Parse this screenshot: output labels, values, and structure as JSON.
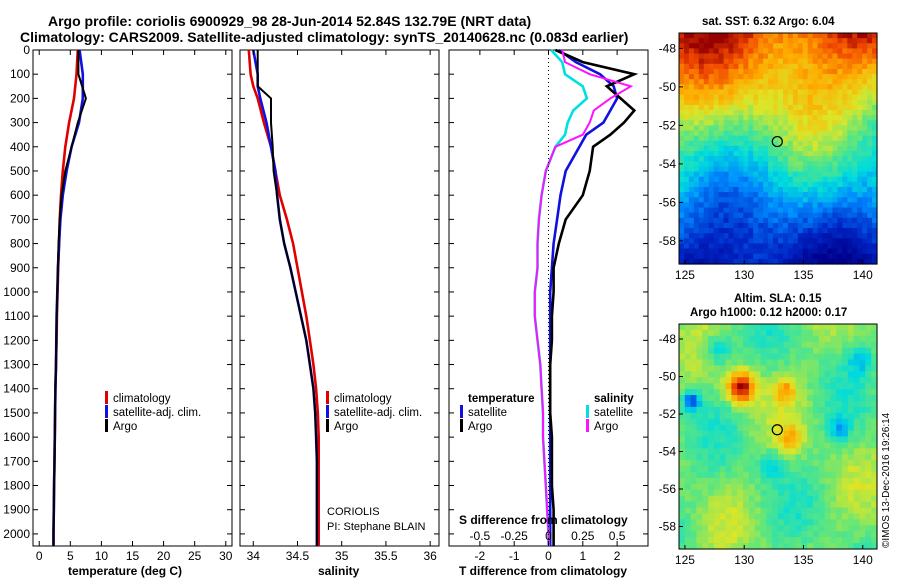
{
  "header": {
    "title_line1": "Argo profile: coriolis 6900929_98 28-Jun-2014 52.84S 132.79E (NRT data)",
    "title_line2": "Climatology: CARS2009. Satellite-adjusted climatology: synTS_20140628.nc (0.083d earlier)"
  },
  "colors": {
    "climatology": "#e00000",
    "satellite_adj": "#1010e0",
    "argo": "#000000",
    "satellite_T": "#1010e0",
    "satellite_S": "#00e0e0",
    "argo_S": "#ff10ff"
  },
  "chart_data": [
    {
      "id": "temperature",
      "type": "line",
      "xlabel": "temperature (deg C)",
      "ylabel": "",
      "xlim": [
        -1,
        31
      ],
      "ylim": [
        2050,
        0
      ],
      "xticks": [
        0,
        5,
        10,
        15,
        20,
        25,
        30
      ],
      "yticks": [
        0,
        100,
        200,
        300,
        400,
        500,
        600,
        700,
        800,
        900,
        1000,
        1100,
        1200,
        1300,
        1400,
        1500,
        1600,
        1700,
        1800,
        1900,
        2000
      ],
      "depth": [
        0,
        100,
        200,
        300,
        400,
        500,
        600,
        700,
        800,
        900,
        1000,
        1100,
        1200,
        1300,
        1400,
        1500,
        1600,
        1700,
        1800,
        1900,
        2000,
        2050
      ],
      "series": [
        {
          "name": "climatology",
          "values": [
            6.2,
            6.0,
            5.6,
            4.8,
            4.2,
            3.8,
            3.5,
            3.3,
            3.2,
            3.05,
            2.95,
            2.85,
            2.8,
            2.7,
            2.6,
            2.55,
            2.5,
            2.45,
            2.4,
            2.35,
            2.3,
            2.3
          ]
        },
        {
          "name": "satellite-adj. clim.",
          "values": [
            6.5,
            7.0,
            7.0,
            6.4,
            5.2,
            4.4,
            3.8,
            3.4,
            3.2,
            3.0,
            2.9,
            2.8,
            2.75,
            2.7,
            2.6,
            2.55,
            2.5,
            2.45,
            2.4,
            2.35,
            2.3,
            2.3
          ]
        },
        {
          "name": "Argo",
          "values": [
            6.3,
            6.3,
            7.5,
            6.2,
            5.2,
            4.2,
            3.6,
            3.3,
            3.1,
            3.0,
            2.9,
            2.8,
            2.75,
            2.7,
            2.6,
            2.55,
            2.5,
            2.45,
            2.4,
            2.35,
            2.3,
            2.3
          ]
        }
      ],
      "legend": [
        "climatology",
        "satellite-adj. clim.",
        "Argo"
      ]
    },
    {
      "id": "salinity",
      "type": "line",
      "xlabel": "salinity",
      "xlim": [
        33.85,
        36.1
      ],
      "ylim": [
        2050,
        0
      ],
      "xticks": [
        34,
        34.5,
        35,
        35.5,
        36
      ],
      "depth": [
        0,
        100,
        150,
        200,
        300,
        400,
        500,
        600,
        700,
        800,
        900,
        1000,
        1100,
        1200,
        1300,
        1400,
        1500,
        1600,
        1700,
        1800,
        1900,
        2000,
        2050
      ],
      "series": [
        {
          "name": "climatology",
          "values": [
            33.95,
            33.97,
            34.0,
            34.05,
            34.12,
            34.2,
            34.25,
            34.3,
            34.38,
            34.45,
            34.5,
            34.55,
            34.6,
            34.64,
            34.68,
            34.71,
            34.73,
            34.74,
            34.74,
            34.74,
            34.74,
            34.74,
            34.74
          ]
        },
        {
          "name": "satellite-adj. clim.",
          "values": [
            34.0,
            34.05,
            34.05,
            34.08,
            34.15,
            34.2,
            34.25,
            34.27,
            34.3,
            34.35,
            34.42,
            34.48,
            34.54,
            34.6,
            34.64,
            34.68,
            34.7,
            34.71,
            34.72,
            34.72,
            34.72,
            34.72,
            34.72
          ]
        },
        {
          "name": "Argo",
          "values": [
            34.05,
            34.05,
            34.05,
            34.2,
            34.2,
            34.22,
            34.23,
            34.27,
            34.3,
            34.35,
            34.42,
            34.48,
            34.54,
            34.6,
            34.64,
            34.68,
            34.7,
            34.71,
            34.72,
            34.72,
            34.72,
            34.72,
            34.72
          ]
        }
      ],
      "legend": [
        "climatology",
        "satellite-adj. clim.",
        "Argo"
      ],
      "annotation": [
        "CORIOLIS",
        "PI: Stephane BLAIN"
      ]
    },
    {
      "id": "differences",
      "type": "line",
      "xlabel": "T difference from climatology",
      "top_label": "S difference from climatology",
      "xlim": [
        -2.9,
        2.9
      ],
      "ylim": [
        2050,
        0
      ],
      "xticks": [
        -2,
        -1,
        0,
        1,
        2
      ],
      "xtick_labels": [
        "-2",
        "-1",
        "0",
        "1",
        "2"
      ],
      "s_tick_labels": [
        "-0.5",
        "-0.25",
        "0",
        "0.25",
        "0.5"
      ],
      "depth": [
        0,
        50,
        100,
        150,
        200,
        250,
        300,
        350,
        400,
        500,
        600,
        700,
        800,
        900,
        1000,
        1100,
        1200,
        1300,
        1400,
        1500,
        1600,
        1700,
        1800,
        1900,
        2000,
        2050
      ],
      "series": [
        {
          "name": "temperature satellite",
          "values": [
            0.3,
            0.8,
            1.5,
            1.9,
            2.0,
            1.8,
            1.6,
            1.1,
            0.9,
            0.5,
            0.35,
            0.25,
            0.15,
            0.1,
            0.05,
            0.05,
            0.05,
            0.05,
            0.05,
            0.05,
            0.05,
            0.05,
            0.05,
            0.05,
            0.05,
            0.05
          ]
        },
        {
          "name": "temperature Argo",
          "values": [
            0.2,
            1.0,
            2.5,
            1.7,
            2.1,
            2.5,
            2.2,
            1.8,
            1.3,
            1.2,
            1.0,
            0.5,
            0.3,
            0.15,
            0.15,
            0.1,
            0.1,
            0.05,
            0.05,
            0.05,
            0.1,
            0.1,
            0.1,
            0.15,
            0.15,
            0.15
          ]
        },
        {
          "name": "salinity satellite",
          "values": [
            0.02,
            0.1,
            0.12,
            0.25,
            0.28,
            0.18,
            0.14,
            0.12,
            0.05,
            -0.02,
            -0.05,
            -0.07,
            -0.08,
            -0.08,
            -0.1,
            -0.1,
            -0.08,
            -0.06,
            -0.05,
            -0.04,
            -0.04,
            -0.03,
            -0.02,
            -0.01,
            0.0,
            0.0
          ]
        },
        {
          "name": "salinity Argo",
          "values": [
            0.1,
            0.12,
            0.3,
            0.6,
            0.45,
            0.33,
            0.3,
            0.25,
            0.05,
            -0.02,
            -0.05,
            -0.07,
            -0.08,
            -0.08,
            -0.1,
            -0.1,
            -0.08,
            -0.06,
            -0.05,
            -0.04,
            -0.04,
            -0.03,
            -0.02,
            -0.01,
            0.0,
            0.0
          ]
        }
      ],
      "legend": {
        "temperature_heading": "temperature",
        "salinity_heading": "salinity",
        "temperature": [
          "satellite",
          "Argo"
        ],
        "salinity": [
          "satellite",
          "Argo"
        ]
      }
    },
    {
      "id": "sst_map",
      "type": "heatmap",
      "title": "sat. SST: 6.32 Argo: 6.04",
      "xticks": [
        125,
        130,
        135,
        140
      ],
      "yticks": [
        -48,
        -50,
        -52,
        -54,
        -56,
        -58
      ],
      "xlim": [
        124.5,
        141.2
      ],
      "ylim": [
        -59.2,
        -47.2
      ],
      "marker": {
        "lon": 132.79,
        "lat": -52.84
      }
    },
    {
      "id": "sla_map",
      "type": "heatmap",
      "title_line1": "Altim. SLA: 0.15",
      "title_line2": "Argo h1000: 0.12 h2000: 0.17",
      "xticks": [
        125,
        130,
        135,
        140
      ],
      "yticks": [
        -48,
        -50,
        -52,
        -54,
        -56,
        -58
      ],
      "xlim": [
        124.5,
        141.2
      ],
      "ylim": [
        -59.2,
        -47.2
      ],
      "marker": {
        "lon": 132.79,
        "lat": -52.84
      },
      "watermark": "©IMOS 13-Dec-2016 19:26:14"
    }
  ]
}
